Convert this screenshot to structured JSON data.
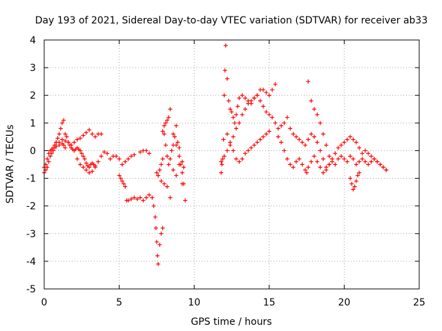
{
  "chart_data": {
    "type": "scatter",
    "title": "Day 193 of 2021, Sidereal Day-to-day VTEC variation (SDTVAR) for receiver ab33",
    "xlabel": "GPS time / hours",
    "ylabel": "SDTVAR / TECUs",
    "xlim": [
      0,
      25
    ],
    "ylim": [
      -5,
      4
    ],
    "xticks": [
      0,
      5,
      10,
      15,
      20,
      25
    ],
    "xtick_labels": [
      "0",
      "5",
      "10",
      "15",
      "20",
      "25"
    ],
    "yticks": [
      -5,
      -4,
      -3,
      -2,
      -1,
      0,
      1,
      2,
      3,
      4
    ],
    "ytick_labels": [
      "-5",
      "-4",
      "-3",
      "-2",
      "-1",
      "0",
      "1",
      "2",
      "3",
      "4"
    ],
    "grid": true,
    "marker": "+",
    "marker_color": "#ff0000",
    "series": [
      {
        "name": "SDTVAR",
        "x": [
          0.0,
          0.1,
          0.2,
          0.3,
          0.4,
          0.5,
          0.6,
          0.7,
          0.8,
          0.9,
          1.0,
          1.1,
          1.2,
          1.3,
          1.4,
          1.5,
          1.6,
          1.7,
          1.8,
          1.9,
          2.0,
          2.1,
          2.2,
          2.3,
          2.4,
          2.5,
          2.6,
          2.7,
          2.8,
          2.9,
          3.0,
          3.1,
          3.2,
          3.3,
          3.4,
          0.8,
          1.0,
          1.2,
          1.4,
          1.6,
          1.8,
          2.0,
          2.2,
          2.4,
          2.6,
          2.8,
          3.0,
          3.2,
          3.4,
          3.6,
          3.8,
          4.0,
          4.2,
          4.4,
          4.6,
          4.8,
          5.0,
          5.2,
          5.4,
          5.6,
          5.8,
          6.0,
          1.8,
          2.0,
          2.2,
          2.4,
          2.6,
          2.8,
          3.0,
          3.2,
          3.4,
          3.6,
          3.8,
          0.0,
          0.1,
          0.2,
          0.3,
          0.4,
          0.5,
          0.6,
          0.7,
          0.8,
          1.0,
          1.2,
          1.3,
          1.4,
          5.0,
          5.1,
          5.2,
          5.3,
          5.4,
          5.5,
          5.6,
          5.8,
          6.0,
          6.2,
          6.4,
          6.6,
          6.8,
          7.0,
          7.2,
          7.3,
          7.4,
          7.45,
          7.5,
          7.55,
          7.6,
          7.7,
          7.8,
          7.9,
          6.4,
          6.6,
          6.8,
          7.0,
          7.5,
          7.6,
          7.7,
          7.8,
          7.9,
          8.0,
          8.1,
          8.2,
          8.3,
          8.4,
          8.5,
          8.6,
          8.7,
          8.8,
          8.9,
          9.0,
          9.1,
          9.2,
          9.3,
          9.4,
          7.9,
          8.0,
          8.1,
          8.2,
          8.3,
          8.4,
          8.6,
          8.8,
          9.0,
          9.2,
          9.3,
          7.6,
          7.8,
          8.0,
          8.2,
          8.4,
          8.6,
          8.8,
          9.0,
          9.2,
          11.8,
          11.85,
          11.9,
          11.95,
          12.0,
          12.05,
          12.1,
          12.2,
          12.3,
          12.4,
          12.5,
          12.6,
          12.7,
          12.8,
          12.9,
          13.0,
          13.2,
          13.4,
          13.6,
          13.8,
          14.0,
          14.2,
          14.4,
          14.6,
          14.8,
          15.0,
          15.2,
          15.4,
          11.8,
          12.0,
          12.2,
          12.4,
          12.6,
          12.8,
          13.0,
          13.2,
          13.4,
          13.6,
          13.8,
          14.0,
          14.2,
          14.4,
          14.6,
          14.8,
          15.0,
          15.2,
          15.4,
          15.6,
          12.2,
          12.4,
          12.6,
          12.8,
          13.0,
          13.2,
          13.4,
          13.6,
          13.8,
          14.0,
          14.2,
          14.4,
          14.6,
          14.8,
          15.0,
          15.6,
          15.8,
          16.0,
          16.2,
          16.4,
          16.6,
          16.8,
          17.0,
          17.2,
          17.4,
          17.5,
          17.6,
          17.8,
          18.0,
          18.2,
          18.4,
          18.6,
          18.8,
          19.0,
          15.8,
          16.0,
          16.2,
          16.4,
          16.6,
          16.8,
          17.0,
          17.2,
          17.4,
          17.6,
          17.8,
          18.0,
          18.2,
          18.4,
          18.6,
          17.6,
          17.8,
          18.0,
          18.2,
          18.4,
          18.6,
          18.8,
          19.0,
          19.2,
          19.4,
          19.6,
          19.8,
          20.0,
          20.2,
          20.4,
          20.6,
          20.8,
          21.0,
          21.2,
          21.4,
          21.6,
          21.8,
          22.0,
          22.2,
          22.4,
          22.6,
          22.8,
          18.8,
          19.0,
          19.2,
          19.4,
          19.6,
          19.8,
          20.0,
          20.2,
          20.4,
          20.6,
          20.8,
          21.0,
          21.2,
          21.4,
          21.6,
          21.8,
          22.0,
          22.2,
          22.4,
          22.6,
          22.8,
          20.4,
          20.5,
          20.6,
          20.7,
          20.8,
          20.9,
          21.0
        ],
        "y": [
          -0.6,
          -0.5,
          -0.3,
          -0.1,
          0.0,
          0.05,
          0.1,
          0.2,
          0.3,
          0.45,
          0.6,
          0.8,
          1.0,
          1.1,
          0.6,
          0.5,
          0.3,
          0.2,
          0.1,
          0.05,
          0.0,
          0.05,
          0.1,
          0.05,
          0.0,
          -0.1,
          -0.2,
          -0.3,
          -0.45,
          -0.55,
          -0.6,
          -0.5,
          -0.45,
          -0.5,
          -0.55,
          0.3,
          0.3,
          0.4,
          0.35,
          0.3,
          0.2,
          0.0,
          -0.3,
          -0.5,
          -0.6,
          -0.7,
          -0.8,
          -0.75,
          -0.6,
          -0.4,
          -0.2,
          -0.05,
          -0.1,
          -0.3,
          -0.2,
          -0.2,
          -0.3,
          -0.5,
          -0.4,
          -0.3,
          -0.2,
          -0.15,
          0.2,
          0.3,
          0.4,
          0.45,
          0.55,
          0.65,
          0.75,
          0.6,
          0.5,
          0.6,
          0.6,
          -0.8,
          -0.7,
          -0.6,
          -0.4,
          -0.2,
          -0.1,
          0.0,
          0.1,
          0.15,
          0.2,
          0.25,
          0.2,
          0.1,
          -0.9,
          -1.0,
          -1.1,
          -1.2,
          -1.3,
          -1.8,
          -1.8,
          -1.75,
          -1.7,
          -1.75,
          -1.7,
          -1.8,
          -1.7,
          -1.6,
          -1.7,
          -2.0,
          -2.4,
          -2.8,
          -3.3,
          -3.8,
          -4.1,
          -3.4,
          -3.0,
          -2.8,
          -0.05,
          0.0,
          0.0,
          -0.1,
          -0.8,
          -0.9,
          -0.7,
          -0.5,
          -0.3,
          0.6,
          0.2,
          -0.2,
          -0.5,
          -0.3,
          0.0,
          0.2,
          0.5,
          0.9,
          0.3,
          -0.2,
          -0.5,
          -0.8,
          -1.2,
          -1.8,
          0.7,
          0.9,
          1.0,
          1.1,
          1.2,
          1.5,
          0.6,
          0.2,
          0.1,
          -0.4,
          -0.6,
          -0.9,
          -1.1,
          -1.2,
          -1.3,
          -1.7,
          -0.7,
          -0.9,
          -0.5,
          -1.2,
          -0.8,
          -0.5,
          -0.3,
          0.4,
          2.0,
          2.9,
          3.8,
          2.6,
          1.8,
          1.5,
          1.4,
          1.2,
          1.0,
          1.3,
          1.6,
          1.9,
          2.0,
          1.9,
          1.8,
          1.7,
          1.9,
          2.0,
          2.2,
          2.2,
          2.1,
          2.0,
          2.2,
          2.4,
          -0.4,
          -0.2,
          0.0,
          0.2,
          0.5,
          0.8,
          1.0,
          1.3,
          1.5,
          1.7,
          1.8,
          1.9,
          2.0,
          1.8,
          1.6,
          1.4,
          1.3,
          1.2,
          1.0,
          0.8,
          0.6,
          0.3,
          0.0,
          -0.3,
          -0.4,
          -0.3,
          -0.1,
          0.0,
          0.1,
          0.2,
          0.3,
          0.4,
          0.5,
          0.6,
          0.7,
          0.5,
          0.3,
          0.0,
          -0.3,
          -0.5,
          -0.6,
          -0.4,
          -0.3,
          -0.5,
          -0.7,
          -0.8,
          -0.6,
          -0.4,
          -0.2,
          -0.4,
          -0.6,
          -0.8,
          -0.7,
          -0.5,
          0.9,
          1.0,
          1.2,
          0.8,
          0.6,
          0.5,
          0.4,
          0.3,
          0.2,
          0.4,
          0.6,
          0.5,
          0.3,
          0.0,
          -0.3,
          2.5,
          1.8,
          1.5,
          1.3,
          1.0,
          0.6,
          0.2,
          -0.2,
          -0.4,
          -0.5,
          -0.3,
          -0.2,
          -0.3,
          -0.4,
          -0.2,
          -0.3,
          -0.5,
          -0.4,
          -0.3,
          -0.4,
          -0.5,
          -0.4,
          -0.3,
          -0.4,
          -0.5,
          -0.6,
          -0.7,
          -0.6,
          -0.5,
          -0.3,
          -0.1,
          0.1,
          0.2,
          0.3,
          0.4,
          0.5,
          0.4,
          0.3,
          0.1,
          -0.1,
          0.0,
          -0.1,
          -0.2,
          -0.3,
          -0.4,
          -0.5,
          -0.6,
          -0.7,
          -1.0,
          -1.2,
          -1.4,
          -1.3,
          -1.1,
          -0.9,
          -0.8
        ]
      }
    ]
  }
}
